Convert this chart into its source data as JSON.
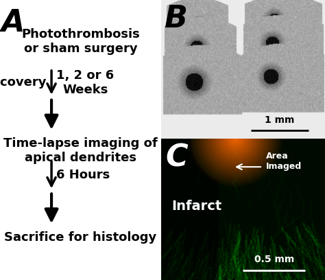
{
  "panel_A": {
    "label": "A",
    "label_fontsize": 32,
    "label_weight": "bold",
    "label_style": "italic",
    "step1_text": "Photothrombosis\nor sham surgery",
    "step1_fontsize": 13,
    "step1_weight": "bold",
    "recovery_label": "Recovery",
    "recovery_fontsize": 13,
    "recovery_weight": "bold",
    "weeks_text": "1, 2 or 6\nWeeks",
    "weeks_fontsize": 13,
    "weeks_weight": "bold",
    "step2_text": "Time-lapse imaging of\napical dendrites",
    "step2_fontsize": 13,
    "step2_weight": "bold",
    "hours_text": "6 Hours",
    "hours_fontsize": 13,
    "hours_weight": "bold",
    "step3_text": "Sacrifice for histology",
    "step3_fontsize": 13,
    "step3_weight": "bold",
    "background": "#ffffff",
    "arrow_color": "#000000"
  },
  "panel_B": {
    "label": "B",
    "label_fontsize": 32,
    "label_weight": "bold",
    "label_style": "italic",
    "scalebar_text": "1 mm",
    "scalebar_fontsize": 10,
    "bg_color": "#c8c8c8"
  },
  "panel_C": {
    "label": "C",
    "label_fontsize": 32,
    "label_weight": "bold",
    "label_style": "italic",
    "infarct_text": "Infarct",
    "infarct_fontsize": 14,
    "infarct_weight": "bold",
    "infarct_color": "#ffffff",
    "area_text": "Area\nImaged",
    "area_fontsize": 9,
    "area_color": "#ffffff",
    "arrow_color": "#ffffff",
    "scalebar_text": "0.5 mm",
    "scalebar_fontsize": 10,
    "scalebar_color": "#ffffff"
  },
  "fig_width": 4.74,
  "fig_height": 4.08,
  "dpi": 100
}
